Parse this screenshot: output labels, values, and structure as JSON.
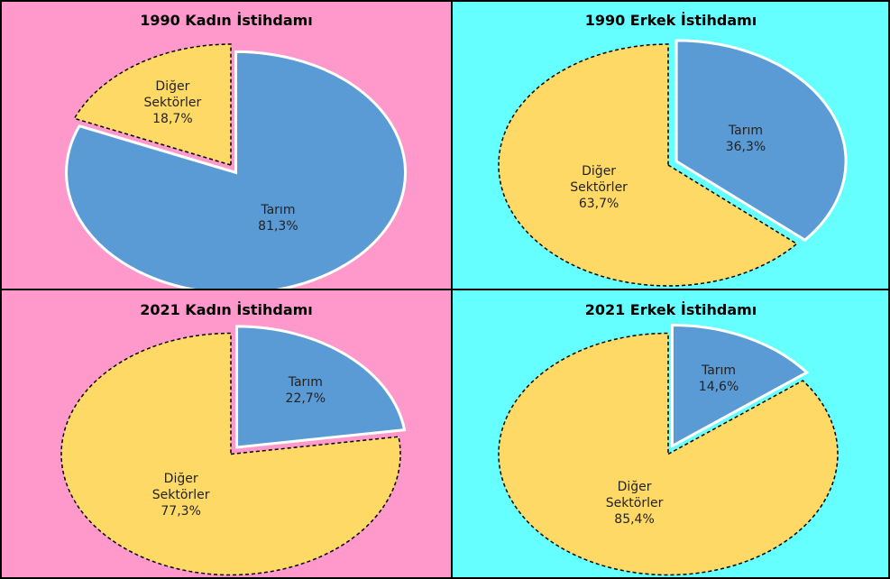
{
  "chart_data": [
    {
      "type": "pie",
      "title": "1990 Kadın İstihdamı",
      "categories": [
        "Tarım",
        "Diğer Sektörler"
      ],
      "values": [
        81.3,
        18.7
      ],
      "value_labels": [
        "81,3%",
        "18,7%"
      ],
      "colors": [
        "#5b9bd5",
        "#ffd966"
      ],
      "exploded": [
        true,
        false
      ],
      "background": "#ff99cc"
    },
    {
      "type": "pie",
      "title": "1990 Erkek İstihdamı",
      "categories": [
        "Tarım",
        "Diğer Sektörler"
      ],
      "values": [
        36.3,
        63.7
      ],
      "value_labels": [
        "36,3%",
        "63,7%"
      ],
      "colors": [
        "#5b9bd5",
        "#ffd966"
      ],
      "exploded": [
        true,
        false
      ],
      "background": "#66ffff"
    },
    {
      "type": "pie",
      "title": "2021 Kadın İstihdamı",
      "categories": [
        "Tarım",
        "Diğer Sektörler"
      ],
      "values": [
        22.7,
        77.3
      ],
      "value_labels": [
        "22,7%",
        "77,3%"
      ],
      "colors": [
        "#5b9bd5",
        "#ffd966"
      ],
      "exploded": [
        true,
        false
      ],
      "background": "#ff99cc"
    },
    {
      "type": "pie",
      "title": "2021 Erkek İstihdamı",
      "categories": [
        "Tarım",
        "Diğer Sektörler"
      ],
      "values": [
        14.6,
        85.4
      ],
      "value_labels": [
        "14,6%",
        "85,4%"
      ],
      "colors": [
        "#5b9bd5",
        "#ffd966"
      ],
      "exploded": [
        true,
        false
      ],
      "background": "#66ffff"
    }
  ]
}
